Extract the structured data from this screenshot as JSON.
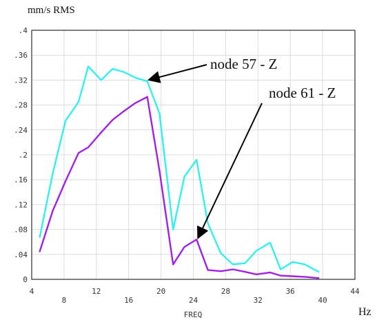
{
  "chart_data": {
    "type": "line",
    "title": "",
    "ylabel": "mm/s RMS",
    "xlabel": "FREQ",
    "x_unit": "Hz",
    "xlim": [
      4,
      44
    ],
    "ylim": [
      0,
      0.4
    ],
    "grid": true,
    "x_ticks": [
      "4",
      "8",
      "12",
      "16",
      "20",
      "24",
      "28",
      "32",
      "36",
      "40",
      "44"
    ],
    "y_ticks": [
      "0",
      ".04",
      ".08",
      ".12",
      ".16",
      ".2",
      ".24",
      ".28",
      ".32",
      ".36",
      ".4"
    ],
    "series": [
      {
        "name": "node 57 - Z",
        "color": "#33f0f0",
        "x": [
          5,
          6.6,
          8.2,
          9.8,
          11,
          12.6,
          14,
          15.4,
          16.8,
          18.3,
          19.8,
          21.5,
          22.9,
          24.4,
          25.8,
          27.4,
          28.9,
          30.4,
          31.8,
          33.5,
          34.8,
          36.3,
          37.8,
          39.5
        ],
        "y": [
          0.068,
          0.17,
          0.255,
          0.285,
          0.342,
          0.32,
          0.338,
          0.333,
          0.324,
          0.318,
          0.267,
          0.08,
          0.165,
          0.192,
          0.09,
          0.042,
          0.024,
          0.026,
          0.046,
          0.059,
          0.016,
          0.028,
          0.024,
          0.012
        ]
      },
      {
        "name": "node 61 - Z",
        "color": "#a020e8",
        "x": [
          5,
          6.6,
          8.2,
          9.8,
          11,
          12.6,
          14,
          15.4,
          16.8,
          18.3,
          19.8,
          21.5,
          22.9,
          24.4,
          25.8,
          27.4,
          28.9,
          30.4,
          31.8,
          33.5,
          34.8,
          36.3,
          37.8,
          39.5
        ],
        "y": [
          0.045,
          0.11,
          0.158,
          0.203,
          0.212,
          0.236,
          0.256,
          0.27,
          0.283,
          0.293,
          0.175,
          0.024,
          0.052,
          0.064,
          0.015,
          0.013,
          0.016,
          0.012,
          0.008,
          0.011,
          0.006,
          0.005,
          0.004,
          0.002
        ]
      }
    ],
    "annotations": [
      {
        "text": "node 57 - Z",
        "points_to": [
          18.3,
          0.318
        ]
      },
      {
        "text": "node 61 - Z",
        "points_to": [
          24.4,
          0.064
        ]
      }
    ]
  }
}
